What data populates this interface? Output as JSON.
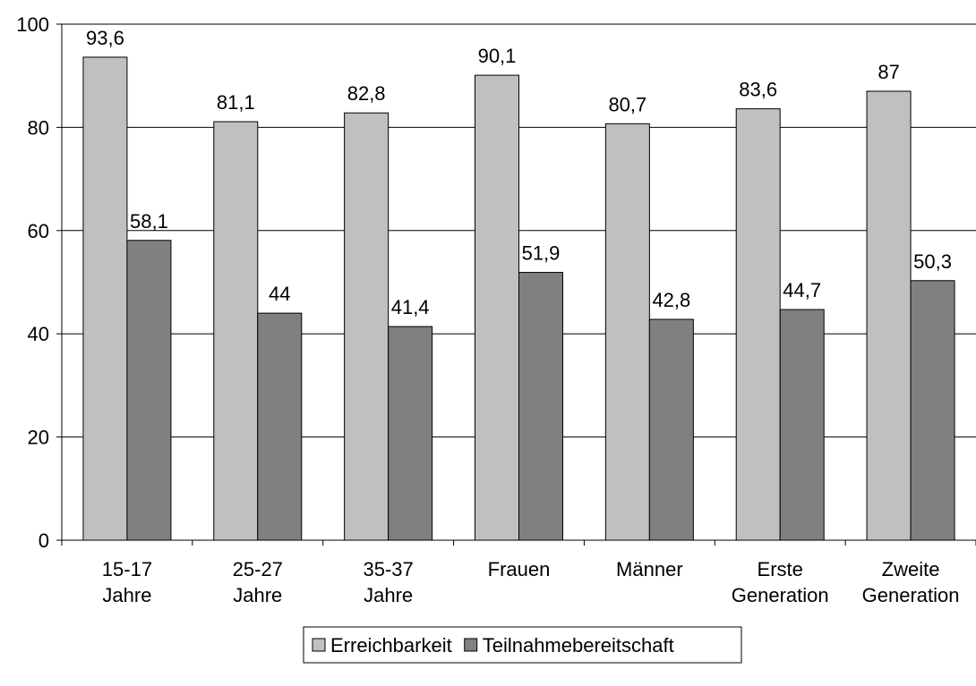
{
  "chart_data": {
    "type": "bar",
    "categories": [
      [
        "15-17",
        "Jahre"
      ],
      [
        "25-27",
        "Jahre"
      ],
      [
        "35-37",
        "Jahre"
      ],
      [
        "Frauen"
      ],
      [
        "Männer"
      ],
      [
        "Erste",
        "Generation"
      ],
      [
        "Zweite",
        "Generation"
      ]
    ],
    "series": [
      {
        "name": "Erreichbarkeit",
        "color": "#c0c0c0",
        "values": [
          93.6,
          81.1,
          82.8,
          90.1,
          80.7,
          83.6,
          87
        ],
        "labels": [
          "93,6",
          "81,1",
          "82,8",
          "90,1",
          "80,7",
          "83,6",
          "87"
        ]
      },
      {
        "name": "Teilnahmebereitschaft",
        "color": "#808080",
        "values": [
          58.1,
          44,
          41.4,
          51.9,
          42.8,
          44.7,
          50.3
        ],
        "labels": [
          "58,1",
          "44",
          "41,4",
          "51,9",
          "42,8",
          "44,7",
          "50,3"
        ]
      }
    ],
    "ylim": [
      0,
      100
    ],
    "yticks": [
      0,
      20,
      40,
      60,
      80,
      100
    ],
    "grid": true,
    "legend": "bottom",
    "title": "",
    "xlabel": "",
    "ylabel": ""
  }
}
